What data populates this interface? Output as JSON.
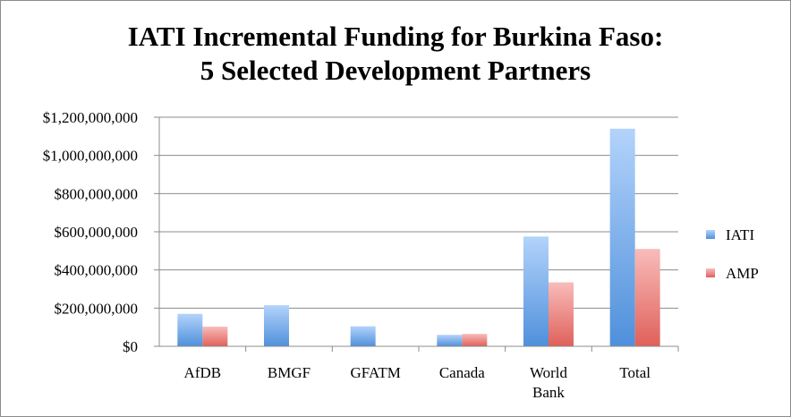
{
  "chart_data": {
    "type": "bar",
    "title": "IATI Incremental Funding for Burkina Faso:",
    "subtitle": "5 Selected Development Partners",
    "categories": [
      [
        "AfDB"
      ],
      [
        "BMGF"
      ],
      [
        "GFATM"
      ],
      [
        "Canada"
      ],
      [
        "World",
        "Bank"
      ],
      [
        "Total"
      ]
    ],
    "series": [
      {
        "name": "IATI",
        "values": [
          170000000,
          215000000,
          105000000,
          60000000,
          575000000,
          1140000000
        ],
        "color": "#4f90db"
      },
      {
        "name": "AMP",
        "values": [
          103000000,
          0,
          0,
          65000000,
          335000000,
          510000000
        ],
        "color": "#e0605a"
      }
    ],
    "ylim": [
      0,
      1200000000
    ],
    "yticks": [
      0,
      200000000,
      400000000,
      600000000,
      800000000,
      1000000000,
      1200000000
    ],
    "ytick_labels": [
      "$0",
      "$200,000,000",
      "$400,000,000",
      "$600,000,000",
      "$800,000,000",
      "$1,000,000,000",
      "$1,200,000,000"
    ],
    "grid": true,
    "legend": "right",
    "xlabel": "",
    "ylabel": ""
  }
}
